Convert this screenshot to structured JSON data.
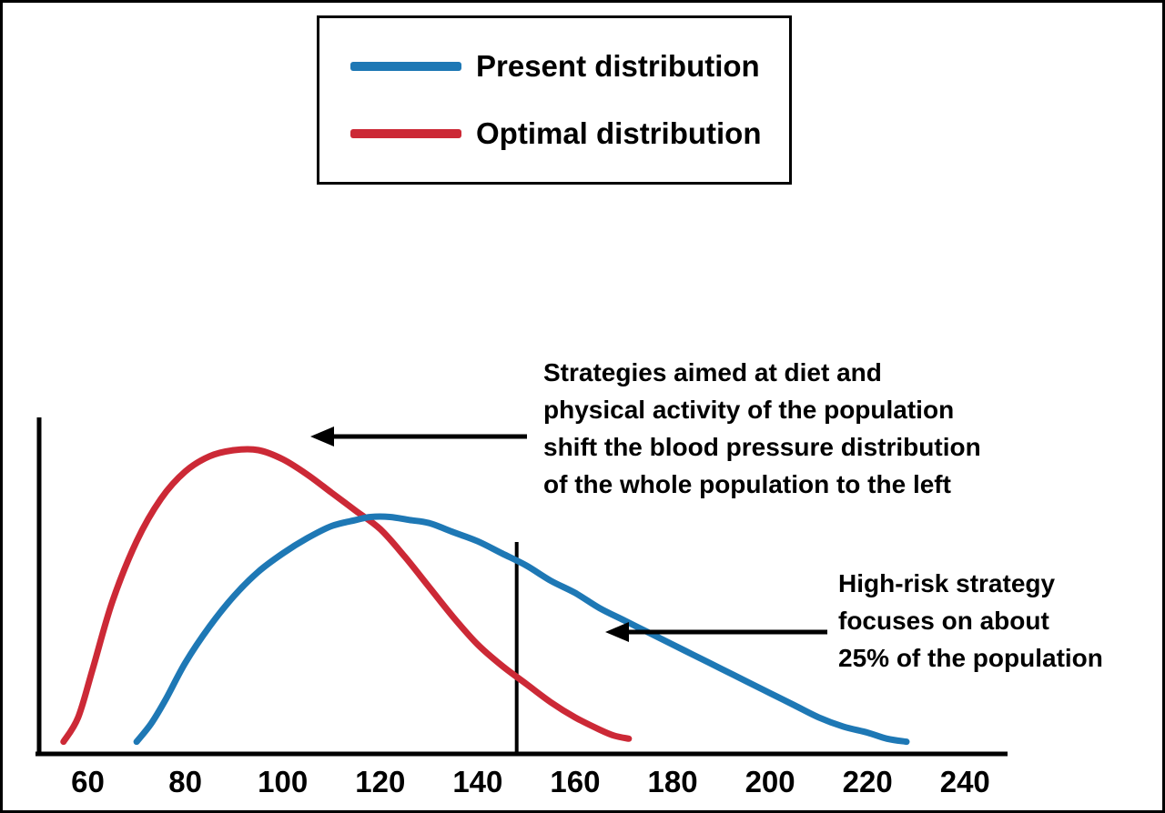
{
  "chart_data": {
    "type": "line",
    "title": "",
    "xlabel": "",
    "ylabel": "",
    "grid": false,
    "legend_position": "top-center",
    "x_ticks": [
      60,
      80,
      100,
      120,
      140,
      160,
      180,
      200,
      220,
      240
    ],
    "x_range": [
      50,
      248
    ],
    "y_range": [
      0,
      105
    ],
    "series": [
      {
        "name": "Present distribution",
        "color": "#1e78b5",
        "points": [
          [
            70,
            4
          ],
          [
            73,
            10
          ],
          [
            76,
            18
          ],
          [
            80,
            30
          ],
          [
            85,
            42
          ],
          [
            90,
            52
          ],
          [
            95,
            60
          ],
          [
            100,
            66
          ],
          [
            105,
            71
          ],
          [
            110,
            75
          ],
          [
            115,
            77
          ],
          [
            118,
            78
          ],
          [
            122,
            78
          ],
          [
            126,
            77
          ],
          [
            130,
            76
          ],
          [
            135,
            73
          ],
          [
            140,
            70
          ],
          [
            145,
            66
          ],
          [
            150,
            62
          ],
          [
            155,
            57
          ],
          [
            160,
            53
          ],
          [
            165,
            48
          ],
          [
            170,
            44
          ],
          [
            175,
            40
          ],
          [
            180,
            36
          ],
          [
            185,
            32
          ],
          [
            190,
            28
          ],
          [
            195,
            24
          ],
          [
            200,
            20
          ],
          [
            205,
            16
          ],
          [
            210,
            12
          ],
          [
            215,
            9
          ],
          [
            220,
            7
          ],
          [
            224,
            5
          ],
          [
            228,
            4
          ]
        ]
      },
      {
        "name": "Optimal distribution",
        "color": "#cc2936",
        "points": [
          [
            55,
            4
          ],
          [
            58,
            12
          ],
          [
            61,
            28
          ],
          [
            65,
            50
          ],
          [
            70,
            70
          ],
          [
            75,
            84
          ],
          [
            80,
            93
          ],
          [
            85,
            98
          ],
          [
            90,
            100
          ],
          [
            95,
            100
          ],
          [
            100,
            97
          ],
          [
            105,
            92
          ],
          [
            110,
            86
          ],
          [
            115,
            80
          ],
          [
            120,
            74
          ],
          [
            125,
            65
          ],
          [
            130,
            55
          ],
          [
            135,
            45
          ],
          [
            140,
            36
          ],
          [
            145,
            29
          ],
          [
            150,
            23
          ],
          [
            155,
            17
          ],
          [
            160,
            12
          ],
          [
            165,
            8
          ],
          [
            168,
            6
          ],
          [
            171,
            5
          ]
        ]
      }
    ],
    "threshold_line": {
      "x": 148
    },
    "annotations": [
      {
        "text": "Strategies aimed at diet and\nphysical activity of the population\nshift the blood pressure distribution\nof the whole population to the left",
        "arrow_direction": "left"
      },
      {
        "text": "High-risk strategy\nfocuses on about\n25% of the population",
        "arrow_direction": "left"
      }
    ]
  },
  "legend": {
    "items": [
      {
        "label": "Present distribution",
        "color": "#1e78b5"
      },
      {
        "label": "Optimal distribution",
        "color": "#cc2936"
      }
    ]
  }
}
